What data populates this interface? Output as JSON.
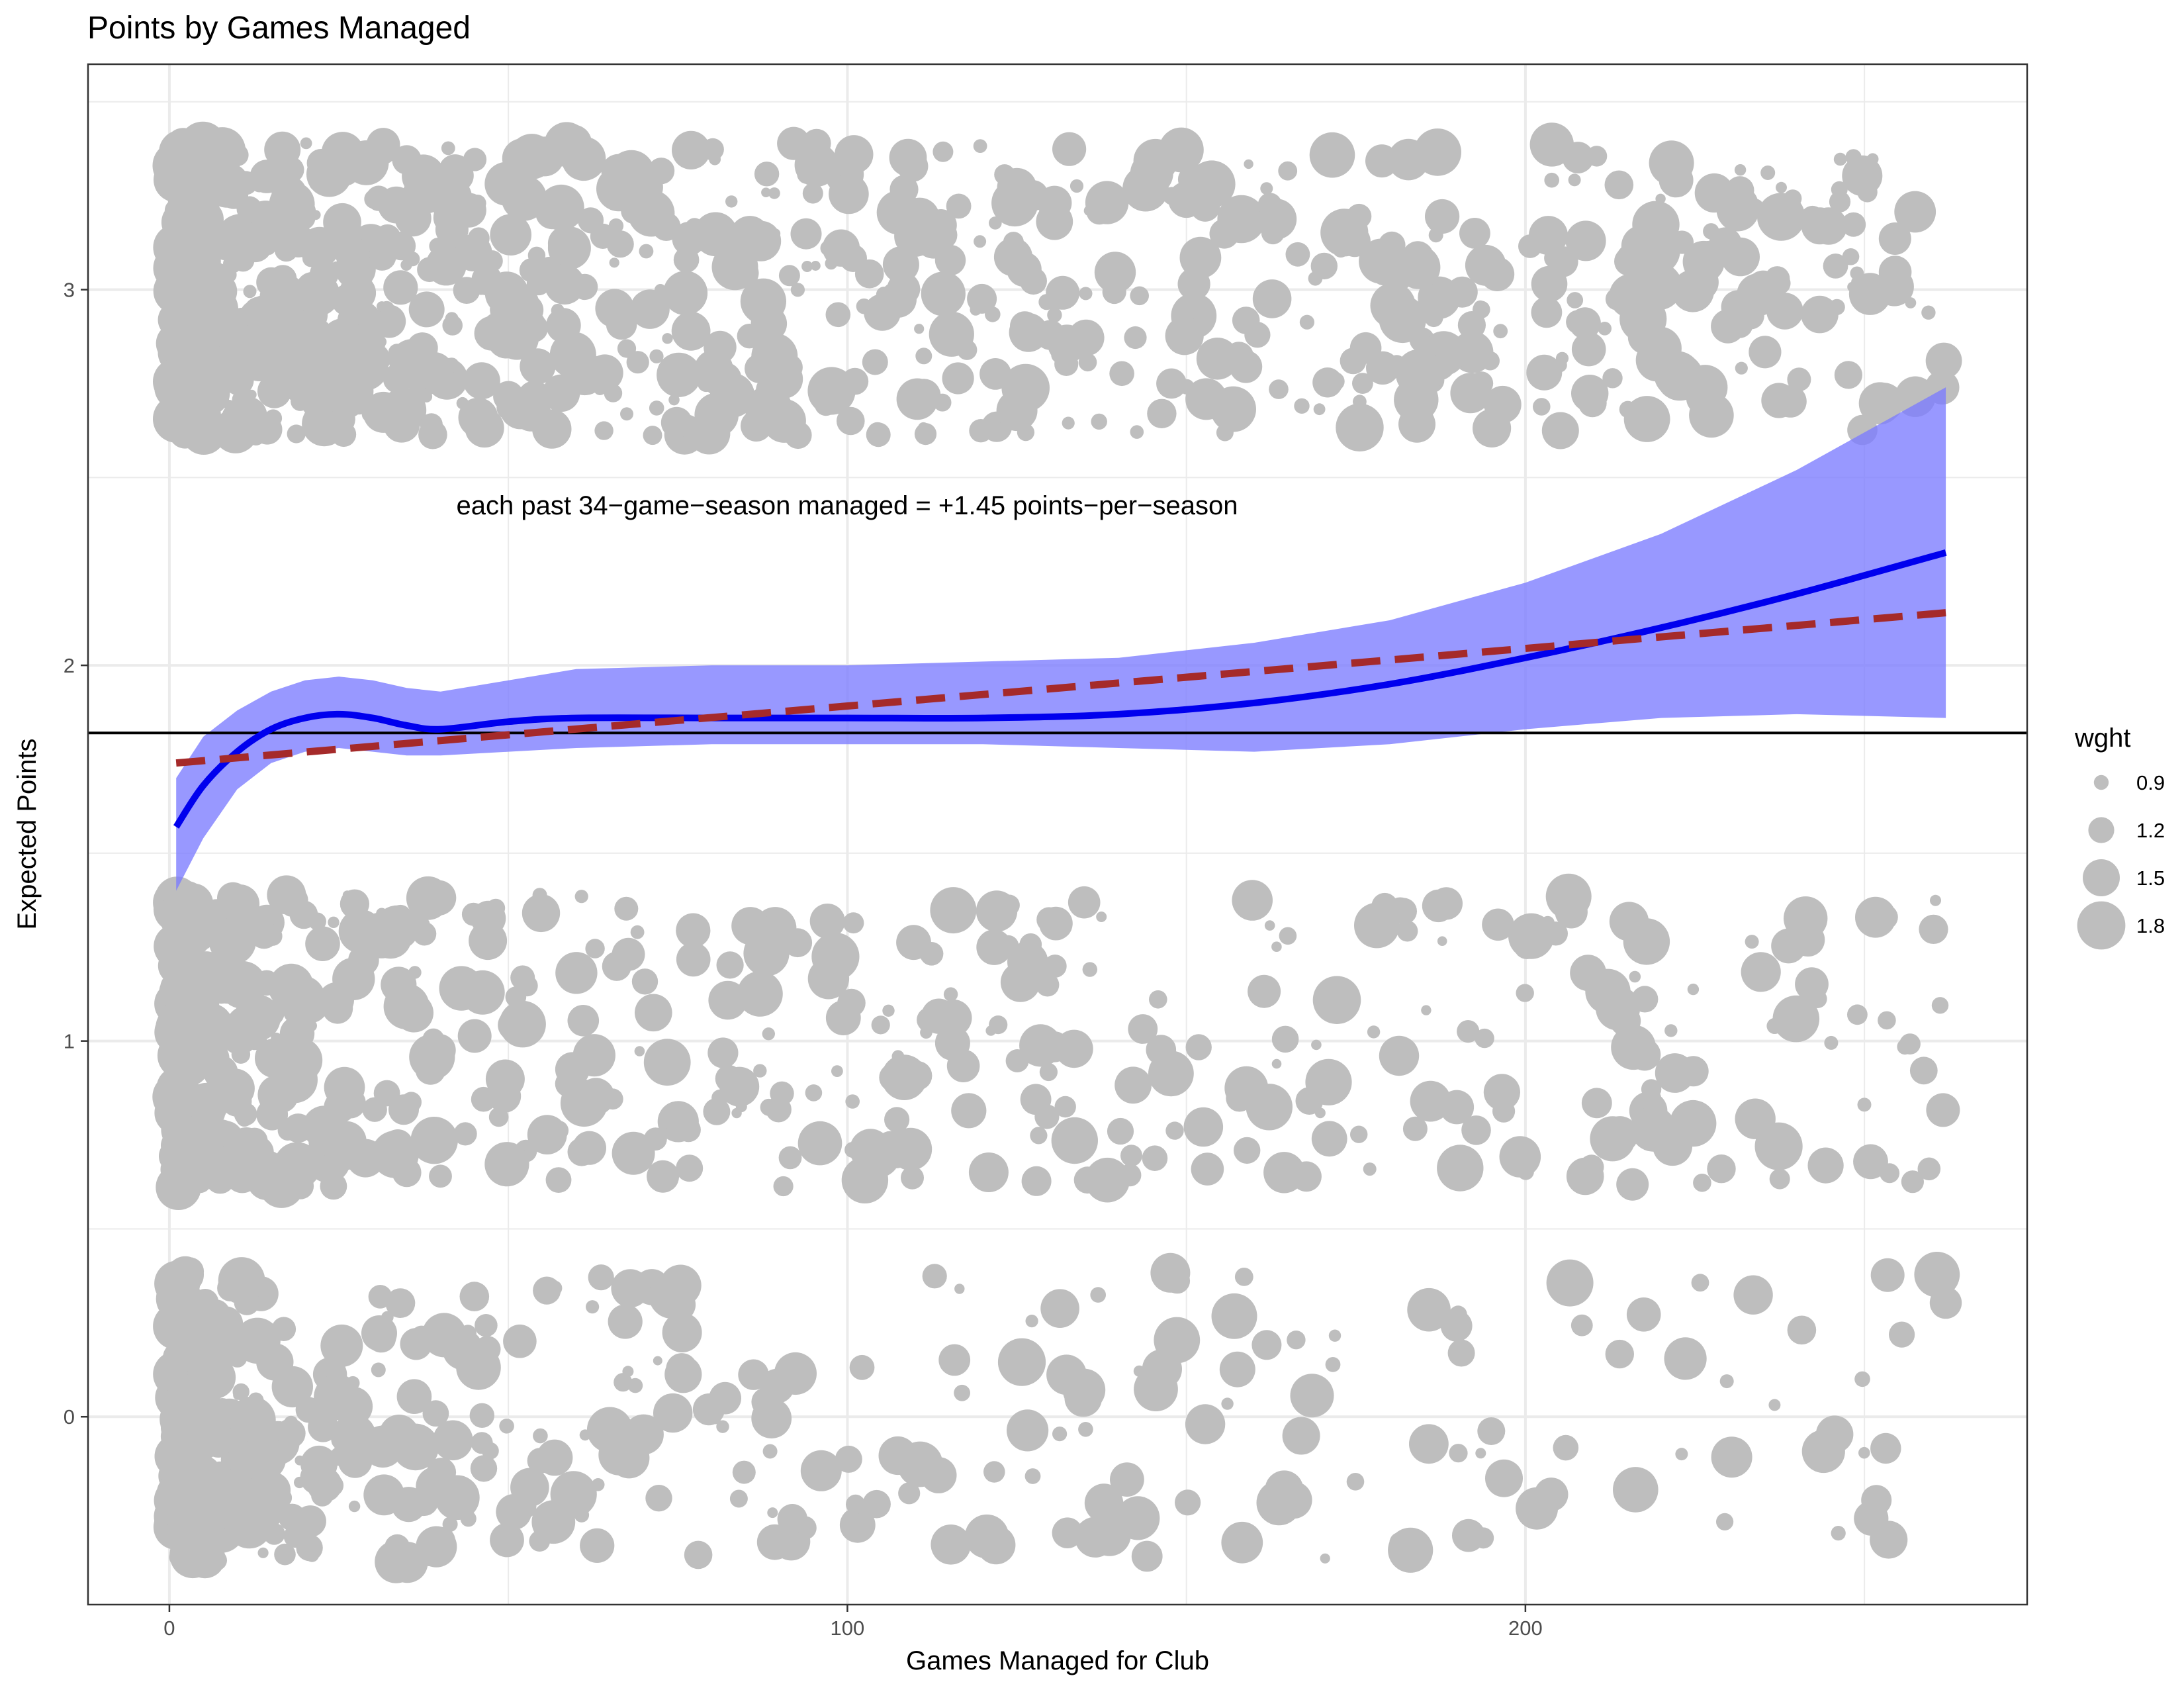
{
  "chart_data": {
    "type": "scatter",
    "title": "Points by Games Managed",
    "xlabel": "Games Managed for Club",
    "ylabel": "Expected Points",
    "xlim": [
      -12,
      274
    ],
    "ylim": [
      -0.5,
      3.6
    ],
    "x_ticks": [
      0,
      100,
      200
    ],
    "y_ticks": [
      0,
      1,
      2,
      3
    ],
    "grid": true,
    "legend_position": "right",
    "annotation": "each past 34−game−season managed = +1.45 points−per−season",
    "point_color": "#bebebe",
    "size_legend": {
      "title": "wght",
      "entries": [
        {
          "label": "0.9",
          "value": 0.9
        },
        {
          "label": "1.2",
          "value": 1.2
        },
        {
          "label": "1.5",
          "value": 1.5
        },
        {
          "label": "1.8",
          "value": 1.8
        }
      ]
    },
    "reference_line": {
      "y": 1.82,
      "color": "#000000"
    },
    "linear_fit": {
      "style": "dashed",
      "color": "#a52a2a",
      "points": [
        [
          1,
          1.74
        ],
        [
          262,
          2.14
        ]
      ]
    },
    "smooth_fit": {
      "color": "#0000ee",
      "band_color": "#7b7bff",
      "x": [
        1,
        5,
        10,
        15,
        20,
        25,
        30,
        35,
        40,
        50,
        60,
        80,
        100,
        120,
        140,
        160,
        180,
        200,
        220,
        240,
        262
      ],
      "y": [
        1.57,
        1.68,
        1.77,
        1.83,
        1.86,
        1.87,
        1.86,
        1.84,
        1.83,
        1.85,
        1.86,
        1.86,
        1.86,
        1.86,
        1.87,
        1.9,
        1.95,
        2.02,
        2.1,
        2.19,
        2.3
      ],
      "lower": [
        1.4,
        1.54,
        1.67,
        1.74,
        1.77,
        1.78,
        1.77,
        1.76,
        1.76,
        1.77,
        1.78,
        1.79,
        1.79,
        1.79,
        1.78,
        1.77,
        1.79,
        1.83,
        1.86,
        1.87,
        1.86
      ],
      "upper": [
        1.7,
        1.81,
        1.88,
        1.93,
        1.96,
        1.97,
        1.96,
        1.94,
        1.93,
        1.96,
        1.99,
        2.0,
        2.0,
        2.01,
        2.02,
        2.06,
        2.12,
        2.22,
        2.35,
        2.52,
        2.74
      ]
    }
  }
}
